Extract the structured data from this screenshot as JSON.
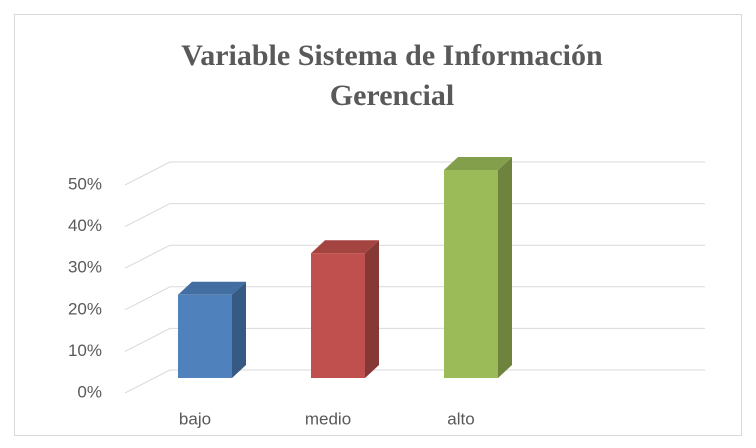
{
  "chart_data": {
    "type": "bar3d",
    "title": [
      "Variable Sistema de Información",
      "Gerencial"
    ],
    "categories": [
      "bajo",
      "medio",
      "alto"
    ],
    "values": [
      20,
      30,
      50
    ],
    "colors": [
      "#4f81bd",
      "#c0504d",
      "#9bbb59"
    ],
    "ylim": [
      0,
      50
    ],
    "yticks": [
      {
        "value": 0,
        "label": "0%"
      },
      {
        "value": 10,
        "label": "10%"
      },
      {
        "value": 20,
        "label": "20%"
      },
      {
        "value": 30,
        "label": "30%"
      },
      {
        "value": 40,
        "label": "40%"
      },
      {
        "value": 50,
        "label": "50%"
      }
    ],
    "grid": true
  }
}
